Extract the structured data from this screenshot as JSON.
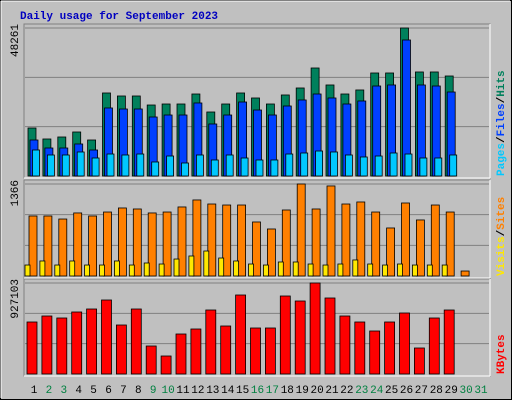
{
  "chart_data": [
    {
      "type": "bar",
      "title": "Daily usage for September 2023",
      "ylim": [
        0,
        48261
      ],
      "yticks": [
        48261
      ],
      "legend_separator": "/",
      "series": [
        {
          "name": "Hits",
          "color": "#00805c",
          "values": [
            15650,
            12070,
            12720,
            14350,
            11740,
            27070,
            26090,
            26090,
            23150,
            23480,
            23480,
            26740,
            20870,
            23480,
            27070,
            25440,
            23480,
            26420,
            28700,
            35220,
            29680,
            26740,
            28050,
            33590,
            33590,
            48261,
            33920,
            33920,
            32610,
            0,
            0
          ]
        },
        {
          "name": "Files",
          "color": "#0040ff",
          "values": [
            11740,
            9130,
            9130,
            10440,
            8480,
            22180,
            21850,
            21850,
            19240,
            19890,
            19890,
            23810,
            16960,
            19890,
            24130,
            21520,
            19890,
            22830,
            24790,
            26740,
            25440,
            23480,
            24460,
            29350,
            29680,
            44350,
            29680,
            29350,
            27390,
            0,
            0
          ]
        },
        {
          "name": "Pages",
          "color": "#00c8ff",
          "values": [
            8480,
            6850,
            6850,
            7830,
            5870,
            7170,
            6850,
            7170,
            4570,
            6520,
            4240,
            6850,
            5220,
            6850,
            5870,
            5220,
            5220,
            7170,
            7500,
            8150,
            7830,
            6850,
            6200,
            6520,
            7500,
            7170,
            5870,
            5870,
            6850,
            0,
            0
          ]
        }
      ]
    },
    {
      "type": "bar",
      "ylim": [
        0,
        1366
      ],
      "yticks": [
        1366
      ],
      "legend_separator": "/",
      "series": [
        {
          "name": "Sites",
          "color": "#ff8000",
          "values": [
            891,
            891,
            846,
            936,
            891,
            950,
            1010,
            995,
            936,
            950,
            1025,
            1129,
            1069,
            1054,
            1054,
            802,
            698,
            980,
            1366,
            995,
            1337,
            1069,
            1099,
            950,
            713,
            1084,
            832,
            1054,
            950,
            74,
            0
          ]
        },
        {
          "name": "Visits",
          "color": "#ffe800",
          "values": [
            163,
            223,
            163,
            223,
            163,
            163,
            223,
            163,
            193,
            178,
            252,
            297,
            371,
            267,
            223,
            178,
            163,
            208,
            208,
            178,
            163,
            178,
            238,
            178,
            163,
            178,
            163,
            163,
            163,
            0,
            0
          ]
        }
      ]
    },
    {
      "type": "bar",
      "ylim": [
        0,
        927103
      ],
      "yticks": [
        927103
      ],
      "categories": [
        "1",
        "2",
        "3",
        "4",
        "5",
        "6",
        "7",
        "8",
        "9",
        "10",
        "11",
        "12",
        "13",
        "14",
        "15",
        "16",
        "17",
        "18",
        "19",
        "20",
        "21",
        "22",
        "23",
        "24",
        "25",
        "26",
        "27",
        "28",
        "29",
        "30",
        "31"
      ],
      "category_colors": [
        "#000000",
        "#008040",
        "#008040",
        "#000000",
        "#000000",
        "#000000",
        "#000000",
        "#000000",
        "#008040",
        "#008040",
        "#000000",
        "#000000",
        "#000000",
        "#000000",
        "#000000",
        "#008040",
        "#008040",
        "#000000",
        "#000000",
        "#000000",
        "#000000",
        "#000000",
        "#008040",
        "#008040",
        "#000000",
        "#000000",
        "#000000",
        "#000000",
        "#000000",
        "#008040",
        "#008040"
      ],
      "series": [
        {
          "name": "KBytes",
          "color": "#ff0000",
          "values": [
            529780,
            590900,
            570530,
            631660,
            662220,
            753910,
            499210,
            662220,
            285260,
            183380,
            407520,
            458460,
            652030,
            489020,
            804850,
            468650,
            468650,
            794660,
            743720,
            927103,
            774290,
            590900,
            529780,
            438080,
            529780,
            621470,
            264890,
            570530,
            652030,
            0,
            0
          ]
        }
      ]
    }
  ]
}
